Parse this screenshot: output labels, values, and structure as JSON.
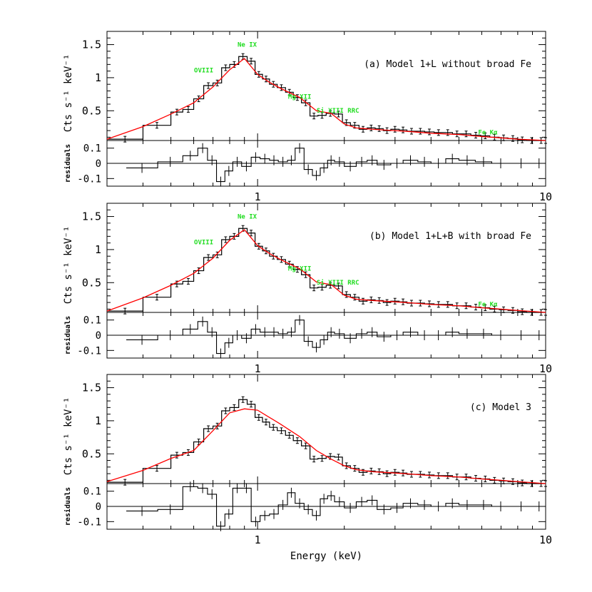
{
  "chart_data": [
    {
      "type": "line",
      "panel": "a",
      "model_label": "(a) Model 1+L without broad Fe",
      "ylabel": "Cts s⁻¹ keV⁻¹",
      "residual_ylabel": "residuals",
      "x_scale": "log",
      "xlim": [
        0.3,
        10
      ],
      "ylim": [
        0.05,
        1.7
      ],
      "residual_ylim": [
        -0.15,
        0.15
      ],
      "x_ticks": [
        "1",
        "10"
      ],
      "y_ticks": [
        "0.5",
        "1",
        "1.5"
      ],
      "residual_ticks": [
        "0.1",
        "0",
        "-0.1"
      ],
      "annotations": [
        {
          "text": "OVIII",
          "x": 0.65,
          "y": 1.08
        },
        {
          "text": "Ne IX",
          "x": 0.92,
          "y": 1.47
        },
        {
          "text": "Mg XII",
          "x": 1.4,
          "y": 0.68
        },
        {
          "text": "Si XIII RRC",
          "x": 1.9,
          "y": 0.47
        },
        {
          "text": "Fe Kα",
          "x": 6.3,
          "y": 0.14
        }
      ],
      "series": [
        {
          "values_note": "data",
          "x": [
            0.3,
            0.4,
            0.5,
            0.55,
            0.6,
            0.65,
            0.7,
            0.75,
            0.8,
            0.86,
            0.92,
            0.98,
            1.04,
            1.1,
            1.17,
            1.25,
            1.33,
            1.42,
            1.52,
            1.62,
            1.73,
            1.85,
            1.97,
            2.1,
            2.25,
            2.4,
            2.56,
            2.73,
            2.9,
            3.1,
            3.3,
            3.55,
            3.8,
            4.1,
            4.4,
            4.75,
            5.1,
            5.5,
            5.95,
            6.4,
            6.9,
            7.4,
            8.0,
            8.6,
            9.3,
            10.0
          ],
          "y": [
            0.07,
            0.28,
            0.48,
            0.52,
            0.68,
            0.88,
            0.92,
            1.15,
            1.2,
            1.32,
            1.25,
            1.05,
            0.98,
            0.9,
            0.85,
            0.78,
            0.7,
            0.62,
            0.42,
            0.43,
            0.46,
            0.45,
            0.32,
            0.28,
            0.22,
            0.24,
            0.23,
            0.2,
            0.22,
            0.21,
            0.19,
            0.19,
            0.18,
            0.17,
            0.17,
            0.15,
            0.15,
            0.13,
            0.12,
            0.1,
            0.09,
            0.08,
            0.06,
            0.05,
            0.05,
            0.05
          ]
        },
        {
          "values_note": "model",
          "x": [
            0.3,
            0.4,
            0.5,
            0.6,
            0.7,
            0.8,
            0.9,
            1.0,
            1.1,
            1.2,
            1.4,
            1.6,
            1.8,
            2.0,
            2.2,
            2.5,
            3.0,
            3.5,
            4.0,
            5.0,
            6.0,
            7.0,
            8.0,
            10.0
          ],
          "y": [
            0.07,
            0.26,
            0.45,
            0.62,
            0.86,
            1.12,
            1.29,
            1.05,
            0.93,
            0.84,
            0.7,
            0.5,
            0.46,
            0.3,
            0.24,
            0.22,
            0.2,
            0.18,
            0.16,
            0.14,
            0.11,
            0.09,
            0.07,
            0.05
          ]
        },
        {
          "values_note": "residuals",
          "x": [
            0.35,
            0.45,
            0.55,
            0.62,
            0.67,
            0.72,
            0.77,
            0.82,
            0.88,
            0.95,
            1.02,
            1.1,
            1.18,
            1.27,
            1.35,
            1.45,
            1.55,
            1.65,
            1.75,
            1.85,
            2.0,
            2.2,
            2.4,
            2.6,
            2.9,
            3.2,
            3.6,
            4.0,
            4.5,
            5.0,
            5.7,
            6.5,
            7.5,
            9.0
          ],
          "y": [
            -0.03,
            0.01,
            0.05,
            0.1,
            0.02,
            -0.12,
            -0.05,
            0.01,
            -0.02,
            0.04,
            0.03,
            0.02,
            0.01,
            0.02,
            0.1,
            -0.04,
            -0.08,
            -0.03,
            0.02,
            0.01,
            -0.02,
            0.01,
            0.02,
            -0.01,
            0.0,
            0.02,
            0.01,
            0.0,
            0.03,
            0.02,
            0.01,
            0.0,
            0.0,
            0.0
          ]
        }
      ]
    },
    {
      "type": "line",
      "panel": "b",
      "model_label": "(b) Model 1+L+B with broad Fe",
      "ylabel": "Cts s⁻¹ keV⁻¹",
      "residual_ylabel": "residuals",
      "x_scale": "log",
      "xlim": [
        0.3,
        10
      ],
      "ylim": [
        0.05,
        1.7
      ],
      "residual_ylim": [
        -0.15,
        0.15
      ],
      "x_ticks": [
        "1",
        "10"
      ],
      "y_ticks": [
        "0.5",
        "1",
        "1.5"
      ],
      "residual_ticks": [
        "0.1",
        "0",
        "-0.1"
      ],
      "annotations": [
        {
          "text": "OVIII",
          "x": 0.65,
          "y": 1.08
        },
        {
          "text": "Ne IX",
          "x": 0.92,
          "y": 1.47
        },
        {
          "text": "Mg XII",
          "x": 1.4,
          "y": 0.68
        },
        {
          "text": "Si XIII RRC",
          "x": 1.9,
          "y": 0.47
        },
        {
          "text": "Fe Kα",
          "x": 6.3,
          "y": 0.14
        }
      ],
      "series": [
        {
          "values_note": "data",
          "x": [
            0.3,
            0.4,
            0.5,
            0.55,
            0.6,
            0.65,
            0.7,
            0.75,
            0.8,
            0.86,
            0.92,
            0.98,
            1.04,
            1.1,
            1.17,
            1.25,
            1.33,
            1.42,
            1.52,
            1.62,
            1.73,
            1.85,
            1.97,
            2.1,
            2.25,
            2.4,
            2.56,
            2.73,
            2.9,
            3.1,
            3.3,
            3.55,
            3.8,
            4.1,
            4.4,
            4.75,
            5.1,
            5.5,
            5.95,
            6.4,
            6.9,
            7.4,
            8.0,
            8.6,
            9.3,
            10.0
          ],
          "y": [
            0.07,
            0.28,
            0.48,
            0.52,
            0.68,
            0.88,
            0.92,
            1.15,
            1.2,
            1.32,
            1.25,
            1.05,
            0.98,
            0.9,
            0.85,
            0.78,
            0.7,
            0.62,
            0.42,
            0.43,
            0.46,
            0.45,
            0.32,
            0.28,
            0.22,
            0.24,
            0.23,
            0.2,
            0.22,
            0.21,
            0.19,
            0.19,
            0.18,
            0.17,
            0.17,
            0.15,
            0.15,
            0.13,
            0.12,
            0.1,
            0.09,
            0.08,
            0.06,
            0.05,
            0.05,
            0.05
          ]
        },
        {
          "values_note": "model",
          "x": [
            0.3,
            0.4,
            0.5,
            0.6,
            0.7,
            0.8,
            0.9,
            1.0,
            1.1,
            1.2,
            1.4,
            1.6,
            1.8,
            2.0,
            2.2,
            2.5,
            3.0,
            3.5,
            4.0,
            5.0,
            6.0,
            7.0,
            8.0,
            10.0
          ],
          "y": [
            0.07,
            0.27,
            0.46,
            0.64,
            0.87,
            1.14,
            1.3,
            1.06,
            0.94,
            0.85,
            0.71,
            0.51,
            0.47,
            0.31,
            0.25,
            0.23,
            0.21,
            0.19,
            0.17,
            0.15,
            0.12,
            0.1,
            0.08,
            0.05
          ]
        },
        {
          "values_note": "residuals",
          "x": [
            0.35,
            0.45,
            0.55,
            0.62,
            0.67,
            0.72,
            0.77,
            0.82,
            0.88,
            0.95,
            1.02,
            1.1,
            1.18,
            1.27,
            1.35,
            1.45,
            1.55,
            1.65,
            1.75,
            1.85,
            2.0,
            2.2,
            2.4,
            2.6,
            2.9,
            3.2,
            3.6,
            4.0,
            4.5,
            5.0,
            5.7,
            6.5,
            7.5,
            9.0
          ],
          "y": [
            -0.03,
            0.0,
            0.04,
            0.09,
            0.02,
            -0.12,
            -0.05,
            0.0,
            -0.02,
            0.04,
            0.02,
            0.02,
            0.01,
            0.02,
            0.1,
            -0.04,
            -0.08,
            -0.03,
            0.02,
            0.01,
            -0.02,
            0.01,
            0.02,
            -0.01,
            0.0,
            0.02,
            0.0,
            0.0,
            0.02,
            0.01,
            0.01,
            0.0,
            0.0,
            0.0
          ]
        }
      ]
    },
    {
      "type": "line",
      "panel": "c",
      "model_label": "(c) Model 3",
      "ylabel": "Cts s⁻¹ keV⁻¹",
      "xlabel": "Energy (keV)",
      "residual_ylabel": "residuals",
      "x_scale": "log",
      "xlim": [
        0.3,
        10
      ],
      "ylim": [
        0.05,
        1.7
      ],
      "residual_ylim": [
        -0.15,
        0.15
      ],
      "x_ticks": [
        "1",
        "10"
      ],
      "y_ticks": [
        "0.5",
        "1",
        "1.5"
      ],
      "residual_ticks": [
        "0.1",
        "0",
        "-0.1"
      ],
      "annotations": [],
      "series": [
        {
          "values_note": "data",
          "x": [
            0.3,
            0.4,
            0.5,
            0.55,
            0.6,
            0.65,
            0.7,
            0.75,
            0.8,
            0.86,
            0.92,
            0.98,
            1.04,
            1.1,
            1.17,
            1.25,
            1.33,
            1.42,
            1.52,
            1.62,
            1.73,
            1.85,
            1.97,
            2.1,
            2.25,
            2.4,
            2.56,
            2.73,
            2.9,
            3.1,
            3.3,
            3.55,
            3.8,
            4.1,
            4.4,
            4.75,
            5.1,
            5.5,
            5.95,
            6.4,
            6.9,
            7.4,
            8.0,
            8.6,
            9.3,
            10.0
          ],
          "y": [
            0.07,
            0.28,
            0.48,
            0.52,
            0.68,
            0.88,
            0.92,
            1.15,
            1.2,
            1.32,
            1.25,
            1.05,
            0.98,
            0.9,
            0.85,
            0.78,
            0.7,
            0.62,
            0.42,
            0.43,
            0.46,
            0.45,
            0.32,
            0.28,
            0.22,
            0.24,
            0.23,
            0.2,
            0.22,
            0.21,
            0.19,
            0.19,
            0.18,
            0.17,
            0.17,
            0.15,
            0.15,
            0.13,
            0.12,
            0.1,
            0.09,
            0.08,
            0.06,
            0.05,
            0.05,
            0.05
          ]
        },
        {
          "values_note": "model",
          "x": [
            0.3,
            0.4,
            0.5,
            0.6,
            0.7,
            0.8,
            0.9,
            1.0,
            1.1,
            1.2,
            1.4,
            1.6,
            1.8,
            2.0,
            2.2,
            2.5,
            3.0,
            3.5,
            4.0,
            5.0,
            6.0,
            7.0,
            8.0,
            10.0
          ],
          "y": [
            0.08,
            0.25,
            0.43,
            0.55,
            0.85,
            1.12,
            1.18,
            1.16,
            1.05,
            0.95,
            0.76,
            0.55,
            0.42,
            0.32,
            0.26,
            0.23,
            0.21,
            0.19,
            0.17,
            0.15,
            0.12,
            0.1,
            0.08,
            0.05
          ]
        },
        {
          "values_note": "residuals",
          "x": [
            0.35,
            0.45,
            0.55,
            0.62,
            0.67,
            0.72,
            0.77,
            0.82,
            0.88,
            0.95,
            1.02,
            1.1,
            1.18,
            1.27,
            1.35,
            1.45,
            1.55,
            1.65,
            1.75,
            1.85,
            2.0,
            2.2,
            2.4,
            2.6,
            2.9,
            3.2,
            3.6,
            4.0,
            4.5,
            5.0,
            5.7,
            6.5,
            7.5,
            9.0
          ],
          "y": [
            -0.03,
            -0.02,
            0.13,
            0.12,
            0.08,
            -0.13,
            -0.05,
            0.12,
            0.12,
            -0.1,
            -0.06,
            -0.05,
            0.01,
            0.09,
            0.02,
            -0.02,
            -0.06,
            0.05,
            0.07,
            0.03,
            -0.01,
            0.03,
            0.04,
            -0.02,
            -0.01,
            0.02,
            0.01,
            0.0,
            0.02,
            0.01,
            0.01,
            0.0,
            0.0,
            0.0
          ]
        }
      ]
    }
  ],
  "colors": {
    "model_line": "#ff0000",
    "annotation": "#22dd22",
    "data": "#000000"
  }
}
